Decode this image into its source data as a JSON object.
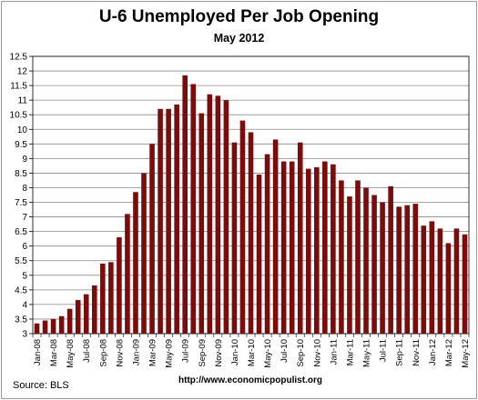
{
  "chart_data": {
    "type": "bar",
    "title": "U-6 Unemployed Per Job Opening",
    "subtitle": "May 2012",
    "source": "Source:  BLS",
    "url": "http://www.economicpopulist.org",
    "ylim": [
      3,
      12.5
    ],
    "ytick_step": 0.5,
    "grid": true,
    "bar_color": "#7b0c0c",
    "categories": [
      "Jan-08",
      "Feb-08",
      "Mar-08",
      "Apr-08",
      "May-08",
      "Jun-08",
      "Jul-08",
      "Aug-08",
      "Sep-08",
      "Oct-08",
      "Nov-08",
      "Dec-08",
      "Jan-09",
      "Feb-09",
      "Mar-09",
      "Apr-09",
      "May-09",
      "Jun-09",
      "Jul-09",
      "Aug-09",
      "Sep-09",
      "Oct-09",
      "Nov-09",
      "Dec-09",
      "Jan-10",
      "Feb-10",
      "Mar-10",
      "Apr-10",
      "May-10",
      "Jun-10",
      "Jul-10",
      "Aug-10",
      "Sep-10",
      "Oct-10",
      "Nov-10",
      "Dec-10",
      "Jan-11",
      "Feb-11",
      "Mar-11",
      "Apr-11",
      "May-11",
      "Jun-11",
      "Jul-11",
      "Aug-11",
      "Sep-11",
      "Oct-11",
      "Nov-11",
      "Dec-11",
      "Jan-12",
      "Feb-12",
      "Mar-12",
      "Apr-12",
      "May-12"
    ],
    "xtick_labels": [
      "Jan-08",
      "Mar-08",
      "May-08",
      "Jul-08",
      "Sep-08",
      "Nov-08",
      "Jan-09",
      "Mar-09",
      "May-09",
      "Jul-09",
      "Sep-09",
      "Nov-09",
      "Jan-10",
      "Mar-10",
      "May-10",
      "Jul-10",
      "Sep-10",
      "Nov-10",
      "Jan-11",
      "Mar-11",
      "May-11",
      "Jul-11",
      "Sep-11",
      "Nov-11",
      "Jan-12",
      "Mar-12",
      "May-12"
    ],
    "values": [
      3.35,
      3.45,
      3.5,
      3.6,
      3.85,
      4.15,
      4.35,
      4.65,
      5.4,
      5.45,
      6.3,
      7.1,
      7.85,
      8.5,
      9.5,
      10.7,
      10.7,
      10.85,
      11.85,
      11.55,
      10.55,
      11.2,
      11.15,
      11.0,
      9.55,
      10.3,
      9.9,
      8.45,
      9.15,
      9.65,
      8.9,
      8.9,
      9.55,
      8.65,
      8.7,
      8.9,
      8.8,
      8.25,
      7.7,
      8.25,
      8.0,
      7.75,
      7.5,
      8.05,
      7.35,
      7.4,
      7.45,
      6.7,
      6.85,
      6.6,
      6.1,
      6.6,
      6.4
    ]
  }
}
